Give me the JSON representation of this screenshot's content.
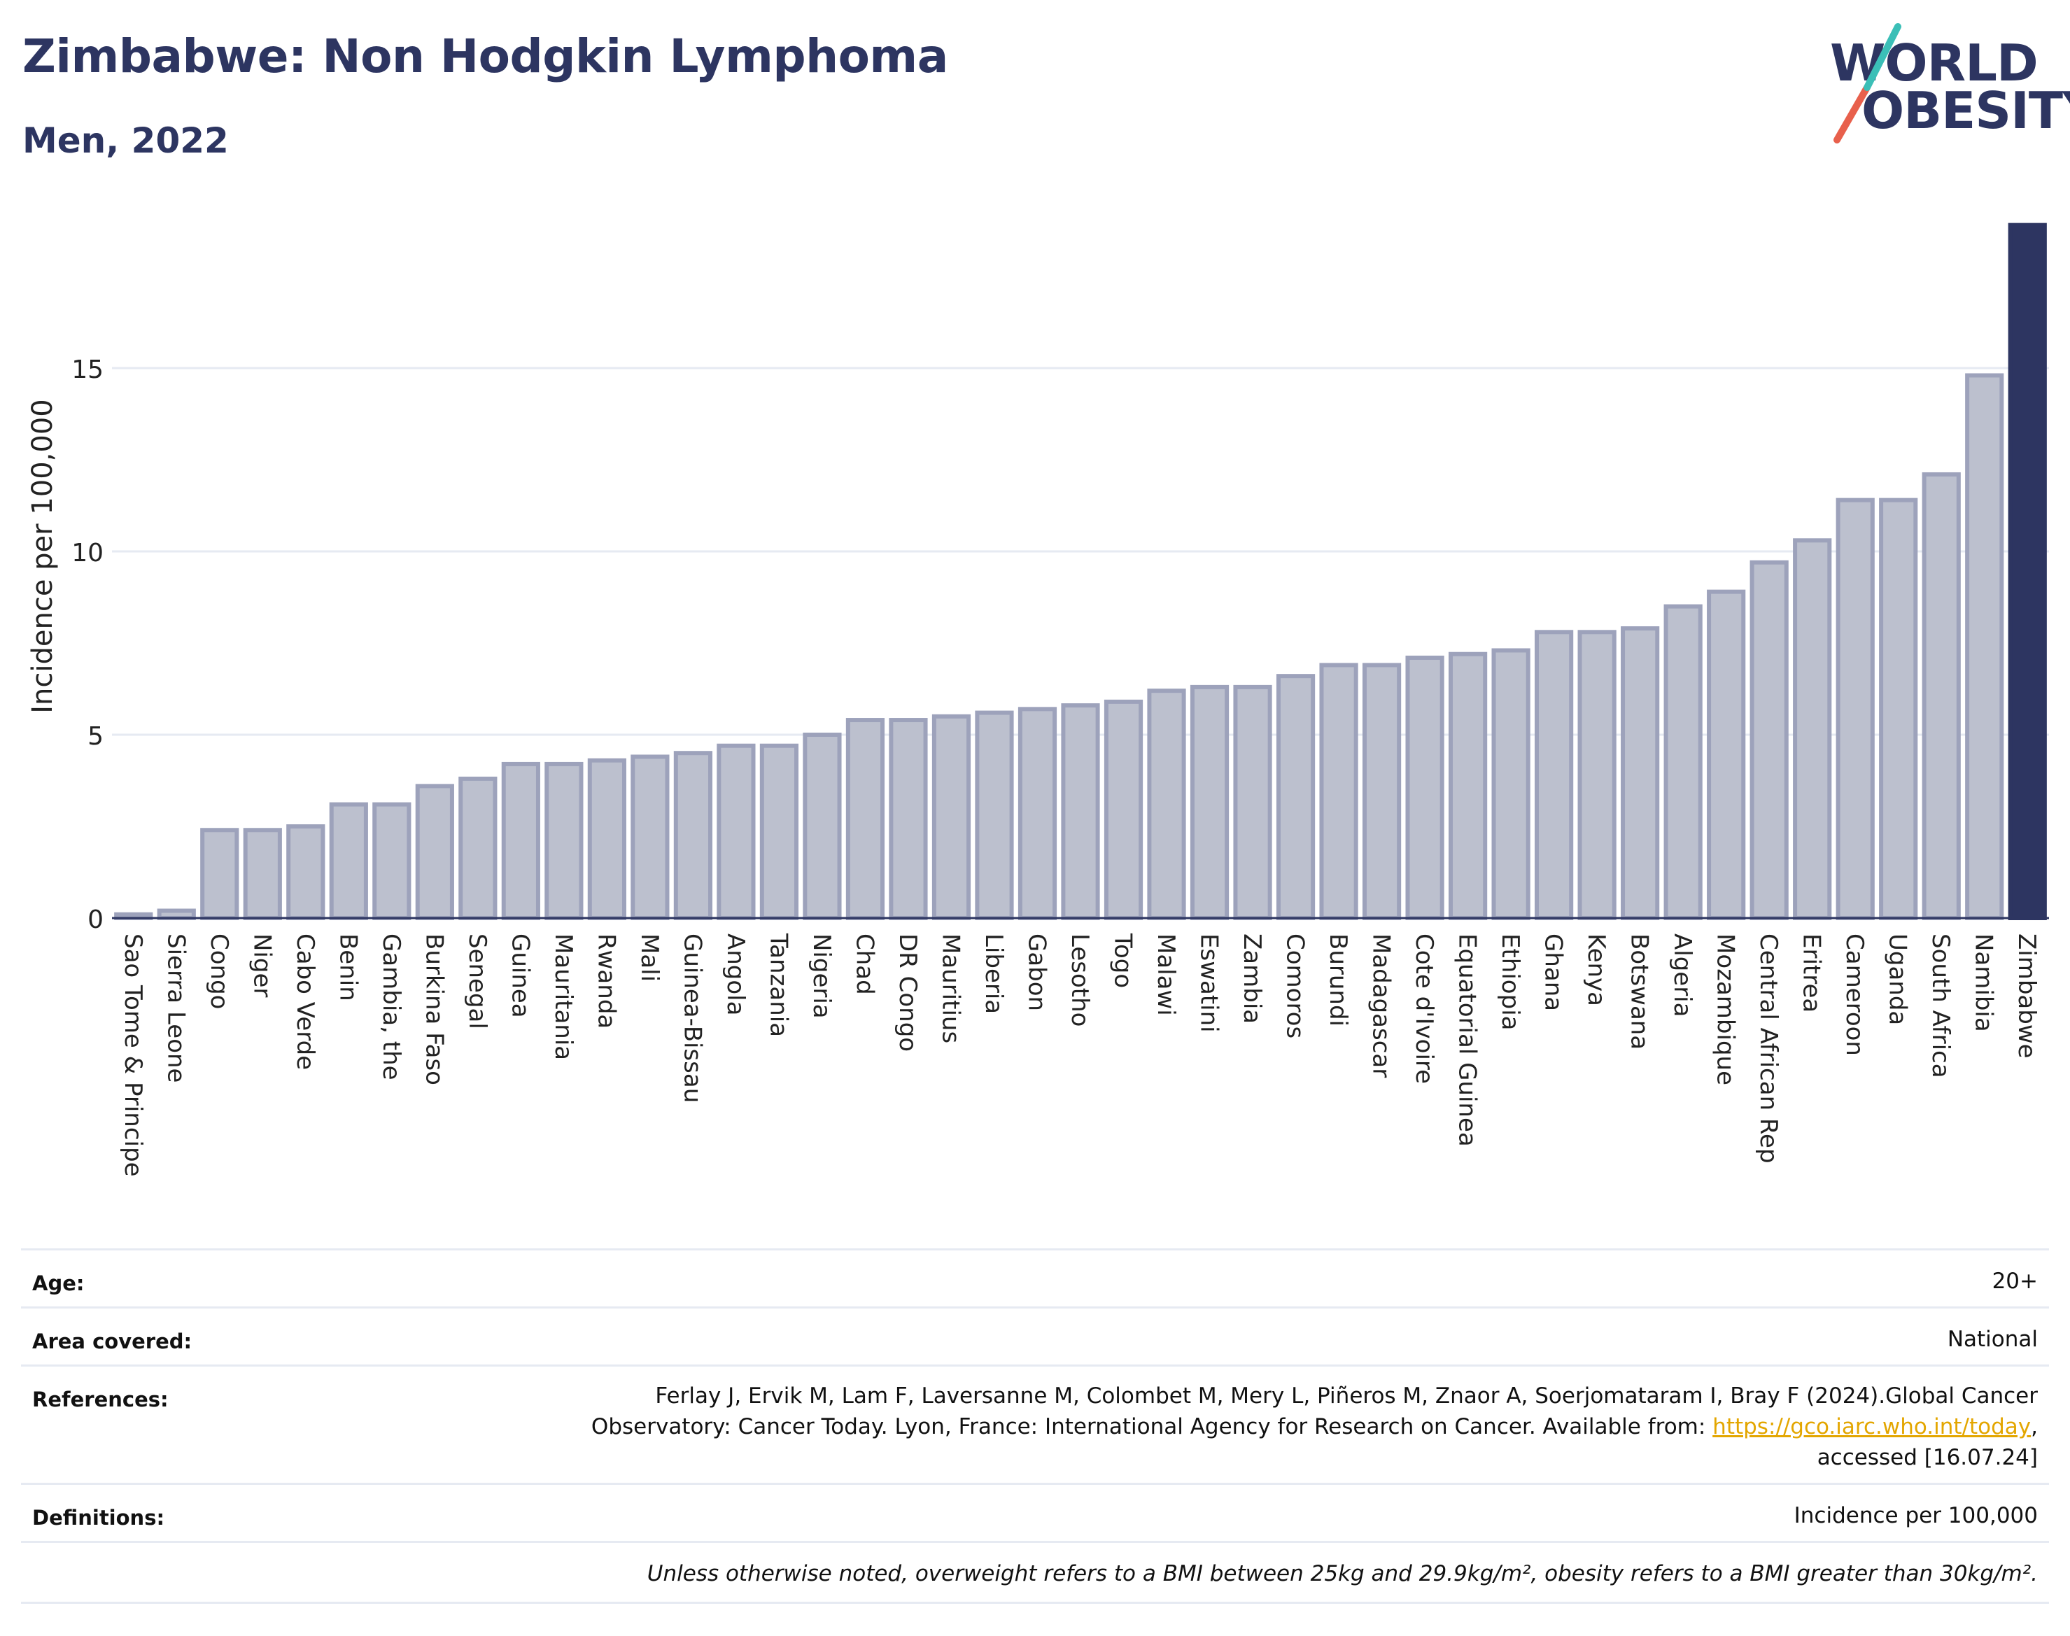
{
  "header": {
    "title": "Zimbabwe: Non Hodgkin Lymphoma",
    "subtitle": "Men, 2022"
  },
  "logo": {
    "line1": "WORLD",
    "line2": "OBESITY",
    "colors": {
      "text": "#2d3561",
      "slash_red": "#e8604c",
      "slash_teal": "#3bbfb7"
    }
  },
  "chart_data": {
    "type": "bar",
    "ylabel": "Incidence per 100,000",
    "xlabel": "",
    "ylim": [
      0,
      19
    ],
    "yticks": [
      0,
      5,
      10,
      15
    ],
    "grid": true,
    "highlight": "Zimbabwe",
    "colors": {
      "bar": "#bcc0ce",
      "bar_border": "#9da2bb",
      "highlight": "#2d3561",
      "grid": "#e6eaf2"
    },
    "categories": [
      "Sao Tome & Principe",
      "Sierra Leone",
      "Congo",
      "Niger",
      "Cabo Verde",
      "Benin",
      "Gambia, the",
      "Burkina Faso",
      "Senegal",
      "Guinea",
      "Mauritania",
      "Rwanda",
      "Mali",
      "Guinea-Bissau",
      "Angola",
      "Tanzania",
      "Nigeria",
      "Chad",
      "DR Congo",
      "Mauritius",
      "Liberia",
      "Gabon",
      "Lesotho",
      "Togo",
      "Malawi",
      "Eswatini",
      "Zambia",
      "Comoros",
      "Burundi",
      "Madagascar",
      "Cote d'Ivoire",
      "Equatorial Guinea",
      "Ethiopia",
      "Ghana",
      "Kenya",
      "Botswana",
      "Algeria",
      "Mozambique",
      "Central African Rep",
      "Eritrea",
      "Cameroon",
      "Uganda",
      "South Africa",
      "Namibia",
      "Zimbabwe"
    ],
    "values": [
      0.1,
      0.2,
      2.4,
      2.4,
      2.5,
      3.1,
      3.1,
      3.6,
      3.8,
      4.2,
      4.2,
      4.3,
      4.4,
      4.5,
      4.7,
      4.7,
      5.0,
      5.4,
      5.4,
      5.5,
      5.6,
      5.7,
      5.8,
      5.9,
      6.2,
      6.3,
      6.3,
      6.6,
      6.9,
      6.9,
      7.1,
      7.2,
      7.3,
      7.8,
      7.8,
      7.9,
      8.5,
      8.9,
      9.7,
      10.3,
      11.4,
      11.4,
      12.1,
      14.8,
      18.9
    ]
  },
  "info": {
    "age_label": "Age:",
    "age_value": "20+",
    "area_label": "Area covered:",
    "area_value": "National",
    "references_label": "References:",
    "references_line1": "Ferlay J, Ervik M, Lam F, Laversanne M, Colombet M, Mery L, Piñeros M, Znaor A, Soerjomataram I, Bray F (2024).Global Cancer",
    "references_line2_pre": "Observatory: Cancer Today. Lyon, France: International Agency for Research on Cancer. Available from: ",
    "references_link": "https://gco.iarc.who.int/today",
    "references_line2_post": ",",
    "references_line3": "accessed [16.07.24]",
    "definitions_label": "Definitions:",
    "definitions_value": "Incidence per 100,000",
    "note": "Unless otherwise noted, overweight refers to a BMI between 25kg and 29.9kg/m², obesity refers to a BMI greater than 30kg/m²."
  }
}
